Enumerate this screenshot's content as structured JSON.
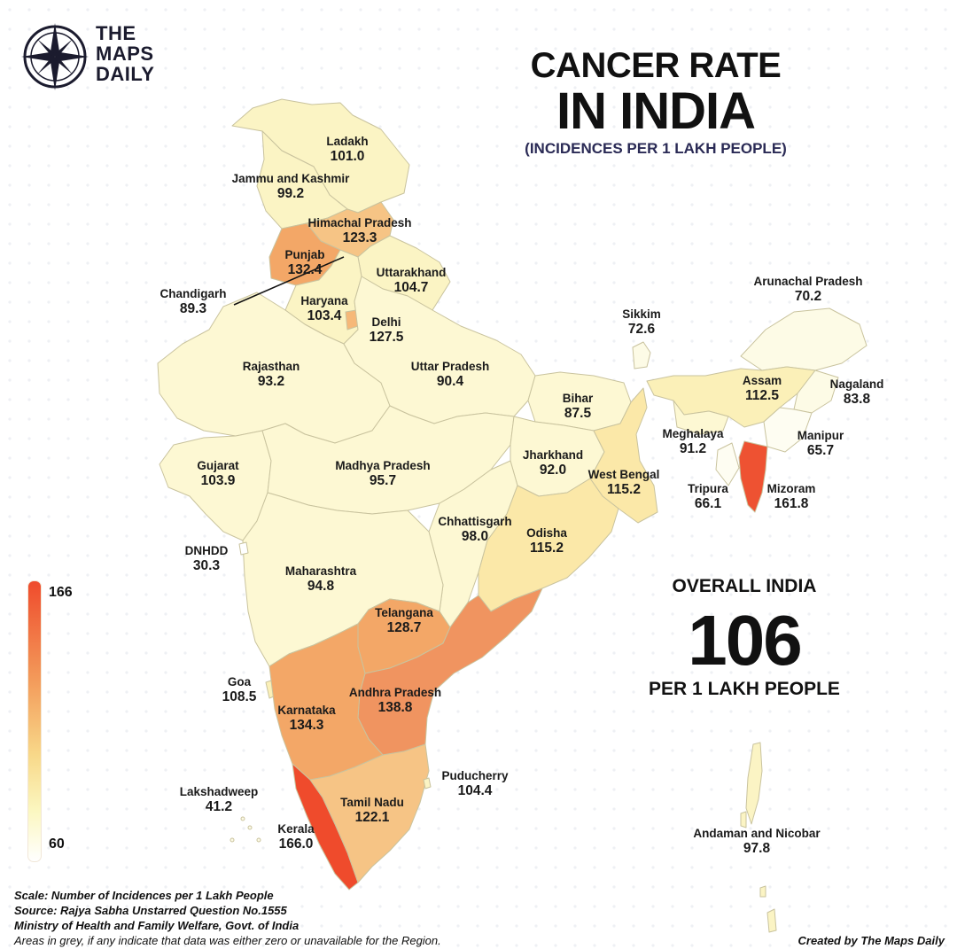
{
  "brand": {
    "line1": "THE",
    "line2": "MAPS",
    "line3": "DAILY"
  },
  "title": {
    "line1": "CANCER RATE",
    "line2": "IN INDIA",
    "subtitle": "(INCIDENCES PER 1 LAKH PEOPLE)"
  },
  "overall": {
    "heading": "OVERALL INDIA",
    "value": "106",
    "unit": "PER 1 LAKH PEOPLE"
  },
  "legend": {
    "max": "166",
    "min": "60",
    "color_high": "#ef4b2c",
    "color_low": "#ffffff"
  },
  "notes": {
    "scale": "Scale: Number of Incidences per 1 Lakh People",
    "source": "Source: Rajya Sabha Unstarred Question No.1555",
    "ministry": "Ministry of Health and Family Welfare, Govt. of India",
    "grey": "Areas in grey, if any indicate that data was either zero or unavailable for the Region."
  },
  "credit": "Created by The Maps Daily",
  "regions": [
    {
      "name": "Ladakh",
      "value": "101.0"
    },
    {
      "name": "Jammu and Kashmir",
      "value": "99.2"
    },
    {
      "name": "Himachal Pradesh",
      "value": "123.3"
    },
    {
      "name": "Punjab",
      "value": "132.4"
    },
    {
      "name": "Uttarakhand",
      "value": "104.7"
    },
    {
      "name": "Chandigarh",
      "value": "89.3"
    },
    {
      "name": "Haryana",
      "value": "103.4"
    },
    {
      "name": "Delhi",
      "value": "127.5"
    },
    {
      "name": "Rajasthan",
      "value": "93.2"
    },
    {
      "name": "Uttar Pradesh",
      "value": "90.4"
    },
    {
      "name": "Bihar",
      "value": "87.5"
    },
    {
      "name": "Sikkim",
      "value": "72.6"
    },
    {
      "name": "Arunachal Pradesh",
      "value": "70.2"
    },
    {
      "name": "Assam",
      "value": "112.5"
    },
    {
      "name": "Nagaland",
      "value": "83.8"
    },
    {
      "name": "Meghalaya",
      "value": "91.2"
    },
    {
      "name": "Manipur",
      "value": "65.7"
    },
    {
      "name": "Gujarat",
      "value": "103.9"
    },
    {
      "name": "Madhya Pradesh",
      "value": "95.7"
    },
    {
      "name": "Jharkhand",
      "value": "92.0"
    },
    {
      "name": "West Bengal",
      "value": "115.2"
    },
    {
      "name": "Tripura",
      "value": "66.1"
    },
    {
      "name": "Mizoram",
      "value": "161.8"
    },
    {
      "name": "Chhattisgarh",
      "value": "98.0"
    },
    {
      "name": "Odisha",
      "value": "115.2"
    },
    {
      "name": "DNHDD",
      "value": "30.3"
    },
    {
      "name": "Maharashtra",
      "value": "94.8"
    },
    {
      "name": "Telangana",
      "value": "128.7"
    },
    {
      "name": "Goa",
      "value": "108.5"
    },
    {
      "name": "Karnataka",
      "value": "134.3"
    },
    {
      "name": "Andhra Pradesh",
      "value": "138.8"
    },
    {
      "name": "Puducherry",
      "value": "104.4"
    },
    {
      "name": "Lakshadweep",
      "value": "41.2"
    },
    {
      "name": "Tamil Nadu",
      "value": "122.1"
    },
    {
      "name": "Kerala",
      "value": "166.0"
    },
    {
      "name": "Andaman and Nicobar",
      "value": "97.8"
    }
  ]
}
